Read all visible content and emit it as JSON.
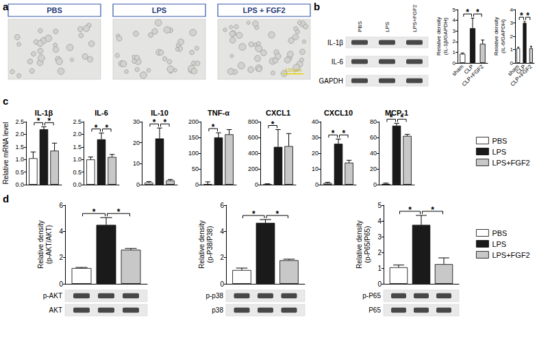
{
  "panel_labels": [
    "a",
    "b",
    "c",
    "d"
  ],
  "micrographs": {
    "labels": [
      "PBS",
      "LPS",
      "LPS + FGF2"
    ],
    "scale_bar": "100μm"
  },
  "blots": [
    {
      "columns": [
        "PBS",
        "LPS",
        "LPS+FGF2"
      ],
      "rows": [
        "IL-1β",
        "IL-6",
        "GAPDH"
      ]
    },
    {
      "rows": [
        "p-AKT",
        "AKT"
      ]
    },
    {
      "rows": [
        "p-p38",
        "p38"
      ]
    },
    {
      "rows": [
        "p-P65",
        "P65"
      ]
    }
  ],
  "chart_data": [
    {
      "type": "bar",
      "y_label": "Relative density (IL-1β/GAPDH)",
      "categories": [
        "sham",
        "CLP",
        "CLP+FGF2"
      ],
      "values": [
        0.85,
        3.25,
        1.8
      ],
      "errors": [
        0.08,
        0.95,
        0.35
      ],
      "colors": [
        "#ffffff",
        "#1a1a1a",
        "#c8c8c8"
      ],
      "ylim": [
        0,
        5
      ],
      "yticks": [
        0,
        1,
        2,
        3,
        4,
        5
      ],
      "annotations": [
        {
          "text": "*",
          "between": [
            "sham",
            "CLP"
          ]
        },
        {
          "text": "*",
          "between": [
            "CLP",
            "CLP+FGF2"
          ]
        }
      ]
    },
    {
      "type": "bar",
      "y_label": "Relative density (IL-6/GAPDH)",
      "categories": [
        "sham",
        "CLP",
        "CLP+FGF2"
      ],
      "values": [
        1.1,
        3.0,
        1.1
      ],
      "errors": [
        0.08,
        0.12,
        0.15
      ],
      "colors": [
        "#ffffff",
        "#1a1a1a",
        "#c8c8c8"
      ],
      "ylim": [
        0,
        4
      ],
      "yticks": [
        0,
        1,
        2,
        3,
        4
      ],
      "annotations": [
        {
          "text": "*",
          "between": [
            "sham",
            "CLP"
          ]
        },
        {
          "text": "*",
          "between": [
            "CLP",
            "CLP+FGF2"
          ]
        }
      ]
    },
    {
      "type": "bar",
      "title": "IL-1β",
      "y_label": "Relative mRNA level",
      "categories": [
        null
      ],
      "tick_labels": "y",
      "series": [
        {
          "name": "PBS",
          "color": "#ffffff",
          "values": [
            1.05
          ],
          "errors": [
            0.25
          ]
        },
        {
          "name": "LPS",
          "color": "#1a1a1a",
          "values": [
            2.2
          ],
          "errors": [
            0.1
          ]
        },
        {
          "name": "LPS+FGF2",
          "color": "#c8c8c8",
          "values": [
            1.35
          ],
          "errors": [
            0.3
          ]
        }
      ],
      "ylim": [
        0,
        2.5
      ],
      "yticks": [
        {
          "value": 0,
          "label": "0.0"
        },
        0.5,
        {
          "value": 1,
          "label": "1.0"
        },
        1.5,
        {
          "value": 2,
          "label": "2.0"
        },
        2.5
      ],
      "annotations": [
        {
          "text": "*",
          "between": [
            "PBS",
            "LPS"
          ]
        },
        {
          "text": "*",
          "between": [
            "LPS",
            "LPS+FGF2"
          ]
        }
      ]
    },
    {
      "type": "bar",
      "title": "IL-6",
      "categories": [
        null
      ],
      "tick_labels": "y",
      "series": [
        {
          "name": "PBS",
          "color": "#ffffff",
          "values": [
            1.0
          ],
          "errors": [
            0.1
          ]
        },
        {
          "name": "LPS",
          "color": "#1a1a1a",
          "values": [
            1.8
          ],
          "errors": [
            0.25
          ]
        },
        {
          "name": "LPS+FGF2",
          "color": "#c8c8c8",
          "values": [
            1.1
          ],
          "errors": [
            0.1
          ]
        }
      ],
      "ylim": [
        0,
        2.5
      ],
      "yticks": [
        {
          "value": 0,
          "label": "0.0"
        },
        0.5,
        {
          "value": 1,
          "label": "1.0"
        },
        1.5,
        {
          "value": 2,
          "label": "2.0"
        },
        2.5
      ],
      "annotations": [
        {
          "text": "*",
          "between": [
            "PBS",
            "LPS"
          ]
        },
        {
          "text": "*",
          "between": [
            "LPS",
            "LPS+FGF2"
          ]
        }
      ]
    },
    {
      "type": "bar",
      "title": "IL-10",
      "categories": [
        null
      ],
      "tick_labels": "y",
      "series": [
        {
          "name": "PBS",
          "color": "#ffffff",
          "values": [
            1
          ],
          "errors": [
            0.5
          ]
        },
        {
          "name": "LPS",
          "color": "#1a1a1a",
          "values": [
            22
          ],
          "errors": [
            5
          ]
        },
        {
          "name": "LPS+FGF2",
          "color": "#c8c8c8",
          "values": [
            2
          ],
          "errors": [
            0.5
          ]
        }
      ],
      "ylim": [
        0,
        30
      ],
      "yticks": [
        0,
        10,
        20,
        30
      ],
      "annotations": [
        {
          "text": "*",
          "between": [
            "PBS",
            "LPS"
          ]
        },
        {
          "text": "*",
          "between": [
            "LPS",
            "LPS+FGF2"
          ]
        }
      ]
    },
    {
      "type": "bar",
      "title": "TNF-α",
      "categories": [
        null
      ],
      "tick_labels": "y",
      "series": [
        {
          "name": "PBS",
          "color": "#ffffff",
          "values": [
            1
          ],
          "errors": [
            8
          ]
        },
        {
          "name": "LPS",
          "color": "#1a1a1a",
          "values": [
            150
          ],
          "errors": [
            15
          ]
        },
        {
          "name": "LPS+FGF2",
          "color": "#c8c8c8",
          "values": [
            160
          ],
          "errors": [
            15
          ]
        }
      ],
      "ylim": [
        0,
        200
      ],
      "yticks": [
        0,
        50,
        100,
        150,
        200
      ],
      "annotations": [
        {
          "text": "*",
          "between": [
            "PBS",
            "LPS"
          ]
        }
      ]
    },
    {
      "type": "bar",
      "title": "CXCL1",
      "categories": [
        null
      ],
      "tick_labels": "y",
      "series": [
        {
          "name": "PBS",
          "color": "#ffffff",
          "values": [
            1
          ],
          "errors": [
            10
          ]
        },
        {
          "name": "LPS",
          "color": "#1a1a1a",
          "values": [
            480
          ],
          "errors": [
            220
          ]
        },
        {
          "name": "LPS+FGF2",
          "color": "#c8c8c8",
          "values": [
            490
          ],
          "errors": [
            160
          ]
        }
      ],
      "ylim": [
        0,
        800
      ],
      "yticks": [
        0,
        200,
        400,
        600,
        800
      ],
      "annotations": [
        {
          "text": "*",
          "between": [
            "PBS",
            "LPS"
          ]
        }
      ]
    },
    {
      "type": "bar",
      "title": "CXCL10",
      "categories": [
        null
      ],
      "tick_labels": "y",
      "series": [
        {
          "name": "PBS",
          "color": "#ffffff",
          "values": [
            1
          ],
          "errors": [
            0.5
          ]
        },
        {
          "name": "LPS",
          "color": "#1a1a1a",
          "values": [
            26
          ],
          "errors": [
            3
          ]
        },
        {
          "name": "LPS+FGF2",
          "color": "#c8c8c8",
          "values": [
            14
          ],
          "errors": [
            1.5
          ]
        }
      ],
      "ylim": [
        0,
        40
      ],
      "yticks": [
        0,
        10,
        20,
        30,
        40
      ],
      "annotations": [
        {
          "text": "*",
          "between": [
            "PBS",
            "LPS"
          ]
        },
        {
          "text": "*",
          "between": [
            "LPS",
            "LPS+FGF2"
          ]
        }
      ]
    },
    {
      "type": "bar",
      "title": "MCP-1",
      "categories": [
        null
      ],
      "tick_labels": "y",
      "legend": "right",
      "series": [
        {
          "name": "PBS",
          "color": "#ffffff",
          "values": [
            1
          ],
          "errors": [
            1
          ]
        },
        {
          "name": "LPS",
          "color": "#1a1a1a",
          "values": [
            75
          ],
          "errors": [
            3
          ]
        },
        {
          "name": "LPS+FGF2",
          "color": "#c8c8c8",
          "values": [
            62
          ],
          "errors": [
            2
          ]
        }
      ],
      "ylim": [
        0,
        80
      ],
      "yticks": [
        0,
        20,
        40,
        60,
        80
      ],
      "annotations": [
        {
          "text": "*",
          "between": [
            "PBS",
            "LPS"
          ]
        },
        {
          "text": "*",
          "between": [
            "LPS",
            "LPS+FGF2"
          ]
        }
      ]
    },
    {
      "type": "bar",
      "y_label": "Relative density (p-AKT/AKT)",
      "categories": [
        null
      ],
      "tick_labels": "y",
      "series": [
        {
          "name": "PBS",
          "color": "#ffffff",
          "values": [
            1.2
          ],
          "errors": [
            0.05
          ]
        },
        {
          "name": "LPS",
          "color": "#1a1a1a",
          "values": [
            4.5
          ],
          "errors": [
            0.55
          ]
        },
        {
          "name": "LPS+FGF2",
          "color": "#c8c8c8",
          "values": [
            2.6
          ],
          "errors": [
            0.1
          ]
        }
      ],
      "ylim": [
        0,
        6
      ],
      "yticks": [
        0,
        2,
        4,
        6
      ],
      "annotations": [
        {
          "text": "*",
          "between": [
            "PBS",
            "LPS"
          ]
        },
        {
          "text": "*",
          "between": [
            "LPS",
            "LPS+FGF2"
          ]
        }
      ]
    },
    {
      "type": "bar",
      "y_label": "Relative density (p-P38/P38)",
      "categories": [
        null
      ],
      "tick_labels": "y",
      "series": [
        {
          "name": "PBS",
          "color": "#ffffff",
          "values": [
            1.05
          ],
          "errors": [
            0.15
          ]
        },
        {
          "name": "LPS",
          "color": "#1a1a1a",
          "values": [
            4.65
          ],
          "errors": [
            0.25
          ]
        },
        {
          "name": "LPS+FGF2",
          "color": "#c8c8c8",
          "values": [
            1.8
          ],
          "errors": [
            0.08
          ]
        }
      ],
      "ylim": [
        0,
        6
      ],
      "yticks": [
        0,
        2,
        4,
        6
      ],
      "annotations": [
        {
          "text": "*",
          "between": [
            "PBS",
            "LPS"
          ]
        },
        {
          "text": "*",
          "between": [
            "LPS",
            "LPS+FGF2"
          ]
        }
      ]
    },
    {
      "type": "bar",
      "y_label": "Relative density (p-P65/P65)",
      "categories": [
        null
      ],
      "tick_labels": "y",
      "legend": "right",
      "series": [
        {
          "name": "PBS",
          "color": "#ffffff",
          "values": [
            1.05
          ],
          "errors": [
            0.15
          ]
        },
        {
          "name": "LPS",
          "color": "#1a1a1a",
          "values": [
            3.75
          ],
          "errors": [
            0.6
          ]
        },
        {
          "name": "LPS+FGF2",
          "color": "#c8c8c8",
          "values": [
            1.25
          ],
          "errors": [
            0.4
          ]
        }
      ],
      "ylim": [
        0,
        5
      ],
      "yticks": [
        0,
        1,
        2,
        3,
        4,
        5
      ],
      "annotations": [
        {
          "text": "*",
          "between": [
            "PBS",
            "LPS"
          ]
        },
        {
          "text": "*",
          "between": [
            "LPS",
            "LPS+FGF2"
          ]
        }
      ]
    }
  ]
}
